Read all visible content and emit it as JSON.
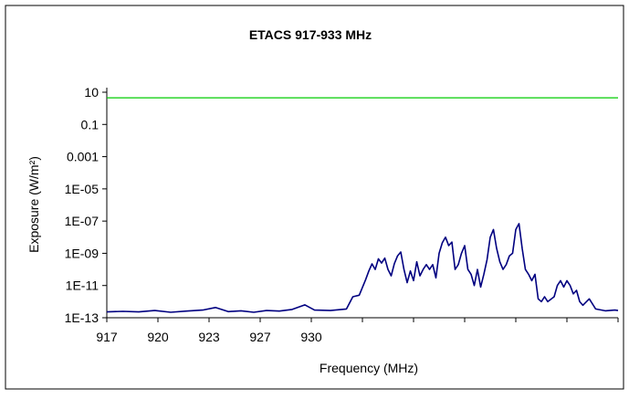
{
  "chart_data": {
    "type": "line",
    "title": "ETACS 917-933 MHz",
    "xlabel": "Frequency (MHz)",
    "ylabel": "Exposure (W/m²)",
    "xlim": [
      917,
      933
    ],
    "ylim_log10": [
      -13,
      1
    ],
    "y_scale": "log",
    "x_ticks": [
      917,
      918.6,
      920.2,
      921.8,
      923.4,
      925,
      926.6,
      928.2,
      929.8,
      931.4,
      933
    ],
    "x_tick_labels": [
      "917",
      "920",
      "923",
      "927",
      "930"
    ],
    "y_ticks_log10": [
      1,
      -1,
      -3,
      -5,
      -7,
      -9,
      -11,
      -13
    ],
    "y_tick_labels": [
      "10",
      "0.1",
      "0.001",
      "1E-05",
      "1E-07",
      "1E-09",
      "1E-11",
      "1E-13"
    ],
    "grid": false,
    "legend": "none",
    "series": [
      {
        "color": "#00cc00",
        "points": [
          [
            917,
            4.5
          ],
          [
            933,
            4.5
          ]
        ]
      },
      {
        "color": "#000080",
        "points": [
          [
            917.0,
            2.3e-13
          ],
          [
            917.5,
            2.5e-13
          ],
          [
            918.0,
            2.3e-13
          ],
          [
            918.5,
            2.8e-13
          ],
          [
            919.0,
            2.2e-13
          ],
          [
            919.5,
            2.6e-13
          ],
          [
            920.0,
            3e-13
          ],
          [
            920.4,
            4.3e-13
          ],
          [
            920.8,
            2.4e-13
          ],
          [
            921.2,
            2.7e-13
          ],
          [
            921.6,
            2.2e-13
          ],
          [
            922.0,
            2.8e-13
          ],
          [
            922.4,
            2.6e-13
          ],
          [
            922.8,
            3.3e-13
          ],
          [
            923.2,
            6.3e-13
          ],
          [
            923.5,
            3e-13
          ],
          [
            924.0,
            2.8e-13
          ],
          [
            924.5,
            3.5e-13
          ],
          [
            924.7,
            2e-12
          ],
          [
            924.9,
            2.5e-12
          ],
          [
            925.1,
            2.3e-11
          ],
          [
            925.2,
            8e-11
          ],
          [
            925.3,
            2.2e-10
          ],
          [
            925.4,
            1e-10
          ],
          [
            925.5,
            4.5e-10
          ],
          [
            925.6,
            2.5e-10
          ],
          [
            925.7,
            5e-10
          ],
          [
            925.8,
            1e-10
          ],
          [
            925.9,
            4e-11
          ],
          [
            926.0,
            2.3e-10
          ],
          [
            926.1,
            7e-10
          ],
          [
            926.2,
            1.2e-09
          ],
          [
            926.3,
            1e-10
          ],
          [
            926.4,
            1.5e-11
          ],
          [
            926.5,
            8e-11
          ],
          [
            926.6,
            2e-11
          ],
          [
            926.7,
            3e-10
          ],
          [
            926.8,
            4e-11
          ],
          [
            926.9,
            1e-10
          ],
          [
            927.0,
            2e-10
          ],
          [
            927.1,
            1e-10
          ],
          [
            927.2,
            2e-10
          ],
          [
            927.3,
            3e-11
          ],
          [
            927.4,
            1e-09
          ],
          [
            927.5,
            4.5e-09
          ],
          [
            927.6,
            1e-08
          ],
          [
            927.7,
            3e-09
          ],
          [
            927.8,
            5e-09
          ],
          [
            927.9,
            1e-10
          ],
          [
            928.0,
            2e-10
          ],
          [
            928.1,
            1e-09
          ],
          [
            928.2,
            3e-09
          ],
          [
            928.3,
            1e-10
          ],
          [
            928.4,
            5e-11
          ],
          [
            928.5,
            1e-11
          ],
          [
            928.6,
            1e-10
          ],
          [
            928.7,
            8e-12
          ],
          [
            928.8,
            5e-11
          ],
          [
            928.9,
            4e-10
          ],
          [
            929.0,
            1e-08
          ],
          [
            929.1,
            3e-08
          ],
          [
            929.2,
            2e-09
          ],
          [
            929.3,
            3e-10
          ],
          [
            929.4,
            1e-10
          ],
          [
            929.5,
            2e-10
          ],
          [
            929.6,
            7e-10
          ],
          [
            929.7,
            1e-09
          ],
          [
            929.8,
            3e-08
          ],
          [
            929.9,
            7e-08
          ],
          [
            930.0,
            2e-09
          ],
          [
            930.1,
            1e-10
          ],
          [
            930.2,
            5e-11
          ],
          [
            930.3,
            2e-11
          ],
          [
            930.4,
            5e-11
          ],
          [
            930.5,
            1.5e-12
          ],
          [
            930.6,
            1e-12
          ],
          [
            930.7,
            2e-12
          ],
          [
            930.8,
            1e-12
          ],
          [
            931.0,
            2e-12
          ],
          [
            931.1,
            1e-11
          ],
          [
            931.2,
            2e-11
          ],
          [
            931.3,
            8e-12
          ],
          [
            931.4,
            2e-11
          ],
          [
            931.5,
            1e-11
          ],
          [
            931.6,
            3e-12
          ],
          [
            931.7,
            5e-12
          ],
          [
            931.8,
            1e-12
          ],
          [
            931.9,
            6e-13
          ],
          [
            932.1,
            1.5e-12
          ],
          [
            932.3,
            3.5e-13
          ],
          [
            932.6,
            2.7e-13
          ],
          [
            932.9,
            3e-13
          ],
          [
            933.0,
            2.8e-13
          ]
        ]
      }
    ]
  }
}
